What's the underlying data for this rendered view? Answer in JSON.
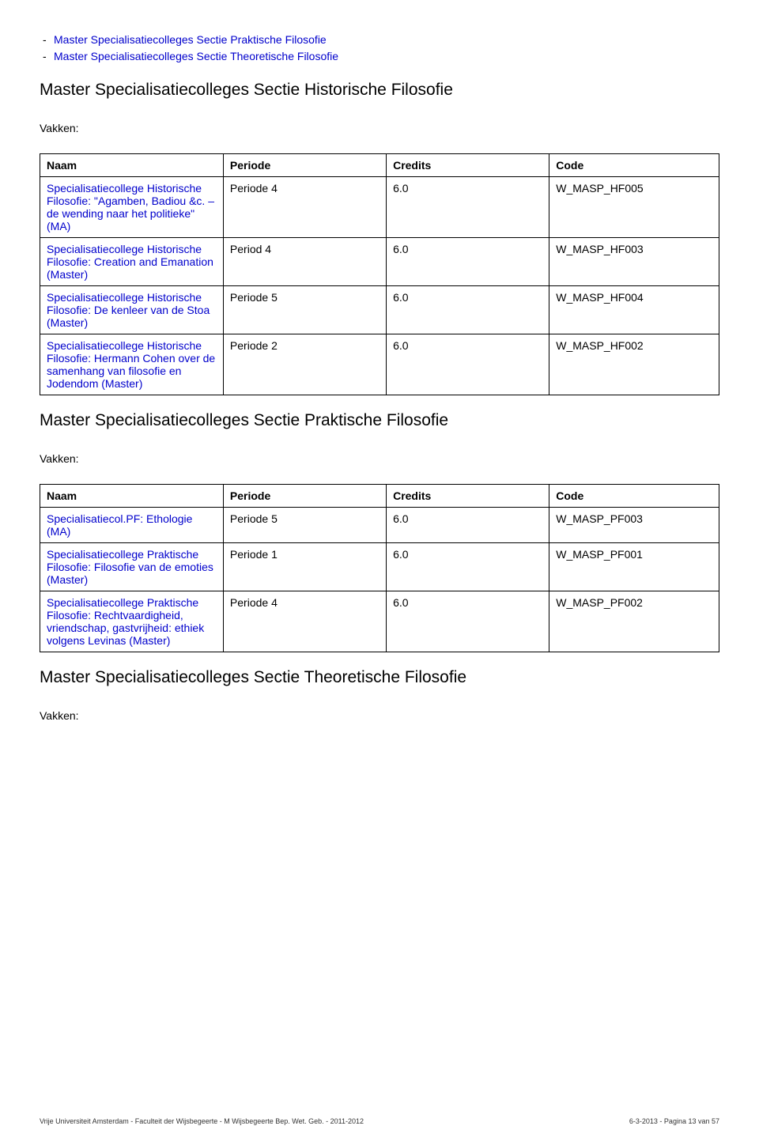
{
  "bullets": [
    "Master Specialisatiecolleges Sectie Praktische Filosofie",
    "Master Specialisatiecolleges Sectie Theoretische Filosofie"
  ],
  "section1": {
    "heading": "Master Specialisatiecolleges Sectie Historische Filosofie",
    "vakken": "Vakken:",
    "columns": [
      "Naam",
      "Periode",
      "Credits",
      "Code"
    ],
    "rows": [
      {
        "name": "Specialisatiecollege Historische Filosofie: \"Agamben, Badiou &c. – de wending naar het politieke\" (MA)",
        "period": "Periode 4",
        "credits": "6.0",
        "code": "W_MASP_HF005"
      },
      {
        "name": "Specialisatiecollege Historische Filosofie: Creation and Emanation (Master)",
        "period": "Period 4",
        "credits": "6.0",
        "code": "W_MASP_HF003"
      },
      {
        "name": "Specialisatiecollege Historische Filosofie: De kenleer van de Stoa (Master)",
        "period": "Periode 5",
        "credits": "6.0",
        "code": "W_MASP_HF004"
      },
      {
        "name": "Specialisatiecollege Historische Filosofie: Hermann Cohen over de samenhang van filosofie en Jodendom (Master)",
        "period": "Periode 2",
        "credits": "6.0",
        "code": "W_MASP_HF002"
      }
    ]
  },
  "section2": {
    "heading": "Master Specialisatiecolleges Sectie Praktische Filosofie",
    "vakken": "Vakken:",
    "columns": [
      "Naam",
      "Periode",
      "Credits",
      "Code"
    ],
    "rows": [
      {
        "name": "Specialisatiecol.PF: Ethologie (MA)",
        "period": "Periode 5",
        "credits": "6.0",
        "code": "W_MASP_PF003"
      },
      {
        "name": "Specialisatiecollege Praktische Filosofie: Filosofie van de emoties (Master)",
        "period": "Periode 1",
        "credits": "6.0",
        "code": "W_MASP_PF001"
      },
      {
        "name": "Specialisatiecollege Praktische Filosofie: Rechtvaardigheid, vriendschap, gastvrijheid: ethiek volgens Levinas (Master)",
        "period": "Periode 4",
        "credits": "6.0",
        "code": "W_MASP_PF002"
      }
    ]
  },
  "section3": {
    "heading": "Master Specialisatiecolleges Sectie Theoretische Filosofie",
    "vakken": "Vakken:"
  },
  "footer": {
    "left": "Vrije Universiteit Amsterdam - Faculteit der Wijsbegeerte - M Wijsbegeerte Bep. Wet. Geb. - 2011-2012",
    "right": "6-3-2013 - Pagina 13 van 57"
  }
}
